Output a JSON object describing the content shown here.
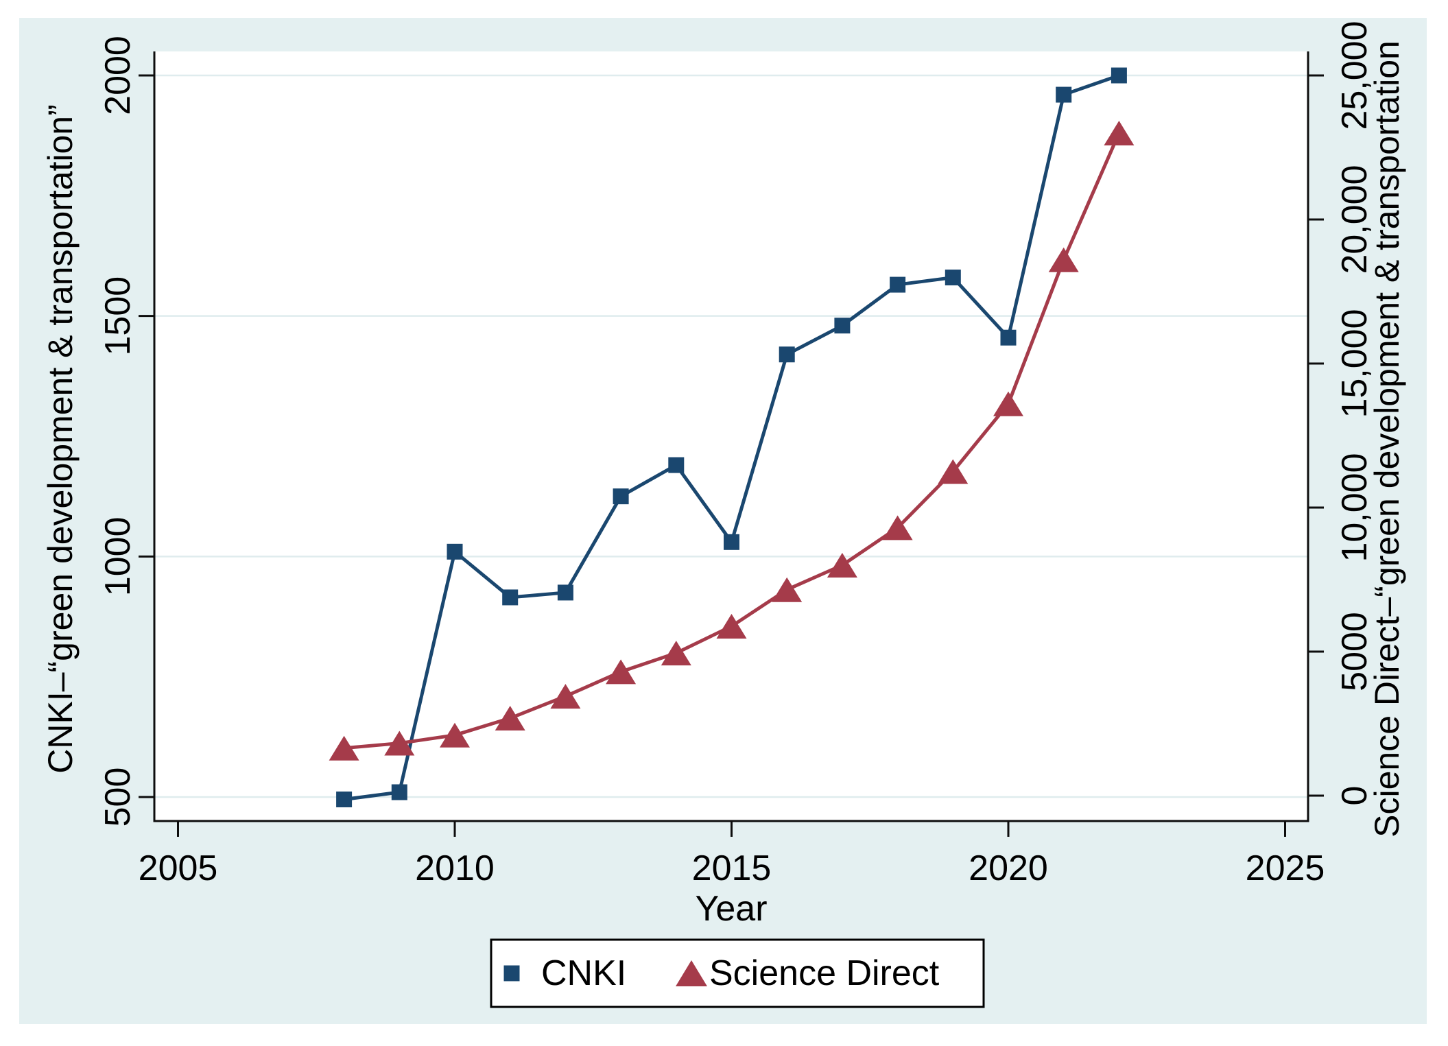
{
  "figure": {
    "background_color": "#e4f0f1",
    "plot_background_color": "#ffffff",
    "gridline_color": "#dfecee",
    "axis_line_color": "#0d0d0d"
  },
  "chart_data": {
    "type": "line",
    "x": [
      2008,
      2009,
      2010,
      2011,
      2012,
      2013,
      2014,
      2015,
      2016,
      2017,
      2018,
      2019,
      2020,
      2021,
      2022
    ],
    "series": [
      {
        "name": "CNKI",
        "axis": "left",
        "color": "#1a476f",
        "marker": "square",
        "values": [
          495,
          510,
          1010,
          915,
          925,
          1125,
          1190,
          1030,
          1420,
          1480,
          1565,
          1580,
          1455,
          1960,
          2000
        ]
      },
      {
        "name": "Science Direct",
        "axis": "right",
        "color": "#a53b4a",
        "marker": "triangle",
        "values": [
          1650,
          1820,
          2100,
          2690,
          3450,
          4300,
          4950,
          5880,
          7150,
          8000,
          9300,
          11250,
          13600,
          18600,
          23000
        ]
      }
    ],
    "x_axis": {
      "label": "Year",
      "ticks": [
        2005,
        2010,
        2015,
        2020,
        2025
      ],
      "range": [
        2004.6,
        2025.4
      ]
    },
    "left_axis": {
      "title": "CNKI–“green development & transportation”",
      "ticks": [
        2000,
        1500,
        1000,
        500
      ],
      "tick_values": [
        2000,
        1500,
        1000,
        500
      ],
      "range": [
        500,
        2050
      ]
    },
    "right_axis": {
      "title": "Science Direct–“green development & transportation",
      "ticks": [
        "25,000",
        "20,000",
        "15,000",
        "10,000",
        "5000",
        "0"
      ],
      "tick_values": [
        25000,
        20000,
        15000,
        10000,
        5000,
        0
      ],
      "range": [
        0,
        25000
      ]
    },
    "grid": "horizontal",
    "legend": {
      "position": "bottom",
      "entries": [
        "CNKI",
        "Science Direct"
      ]
    }
  }
}
